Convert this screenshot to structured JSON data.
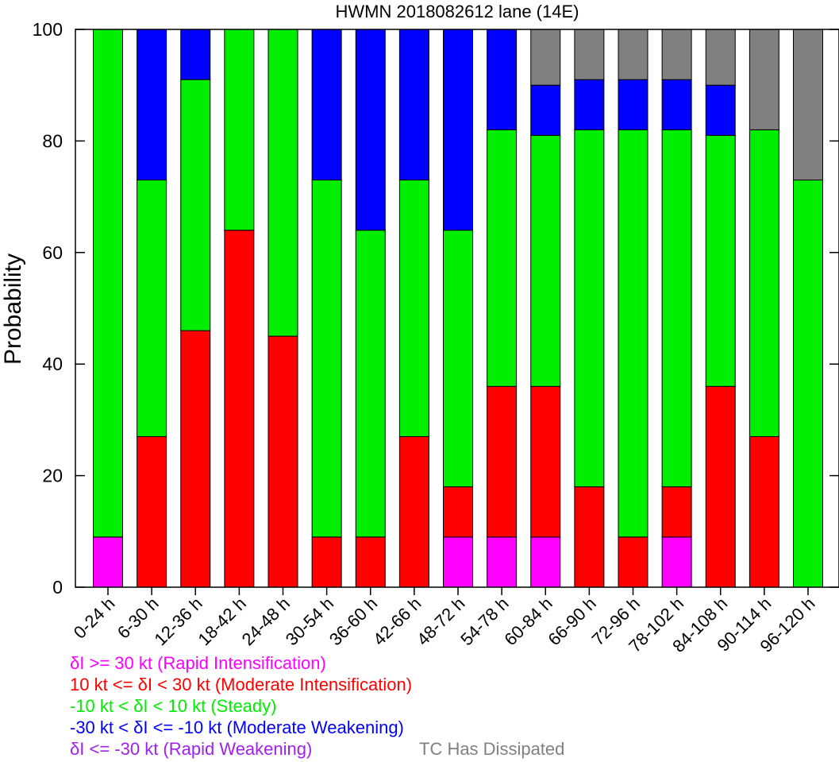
{
  "chart_data": {
    "type": "bar",
    "stacked": true,
    "title": "HWMN 2018082612 lane (14E)",
    "xlabel": "",
    "ylabel": "Probability",
    "ylim": [
      0,
      100
    ],
    "yticks": [
      0,
      20,
      40,
      60,
      80,
      100
    ],
    "categories": [
      "0-24 h",
      "6-30 h",
      "12-36 h",
      "18-42 h",
      "24-48 h",
      "30-54 h",
      "36-60 h",
      "42-66 h",
      "48-72 h",
      "54-78 h",
      "60-84 h",
      "66-90 h",
      "72-96 h",
      "78-102 h",
      "84-108 h",
      "90-114 h",
      "96-120 h"
    ],
    "series": [
      {
        "name": "δI >= 30 kt (Rapid Intensification)",
        "color": "#ff00ff",
        "values": [
          9,
          0,
          0,
          0,
          0,
          0,
          0,
          0,
          9,
          9,
          9,
          0,
          0,
          9,
          0,
          0,
          0
        ]
      },
      {
        "name": "10 kt <= δI < 30 kt (Moderate Intensification)",
        "color": "#ff0000",
        "values": [
          0,
          27,
          46,
          64,
          45,
          9,
          9,
          27,
          9,
          27,
          27,
          18,
          9,
          9,
          36,
          27,
          0
        ]
      },
      {
        "name": "-10 kt < δI < 10 kt (Steady)",
        "color": "#00ee00",
        "values": [
          91,
          46,
          45,
          36,
          55,
          64,
          55,
          46,
          46,
          46,
          45,
          64,
          73,
          64,
          45,
          55,
          73
        ]
      },
      {
        "name": "-30 kt < δI <= -10 kt (Moderate Weakening)",
        "color": "#0000ff",
        "values": [
          0,
          27,
          9,
          0,
          0,
          27,
          36,
          27,
          36,
          18,
          9,
          9,
          9,
          9,
          9,
          0,
          0
        ]
      },
      {
        "name": "δI <= -30 kt (Rapid Weakening)",
        "color": "#a020f0",
        "values": [
          0,
          0,
          0,
          0,
          0,
          0,
          0,
          0,
          0,
          0,
          0,
          0,
          0,
          0,
          0,
          0,
          0
        ]
      },
      {
        "name": "TC Has Dissipated",
        "color": "#808080",
        "values": [
          0,
          0,
          0,
          0,
          0,
          0,
          0,
          0,
          0,
          0,
          10,
          9,
          9,
          9,
          10,
          18,
          27
        ]
      }
    ],
    "grid": false,
    "legend_placement": "bottom-left"
  }
}
